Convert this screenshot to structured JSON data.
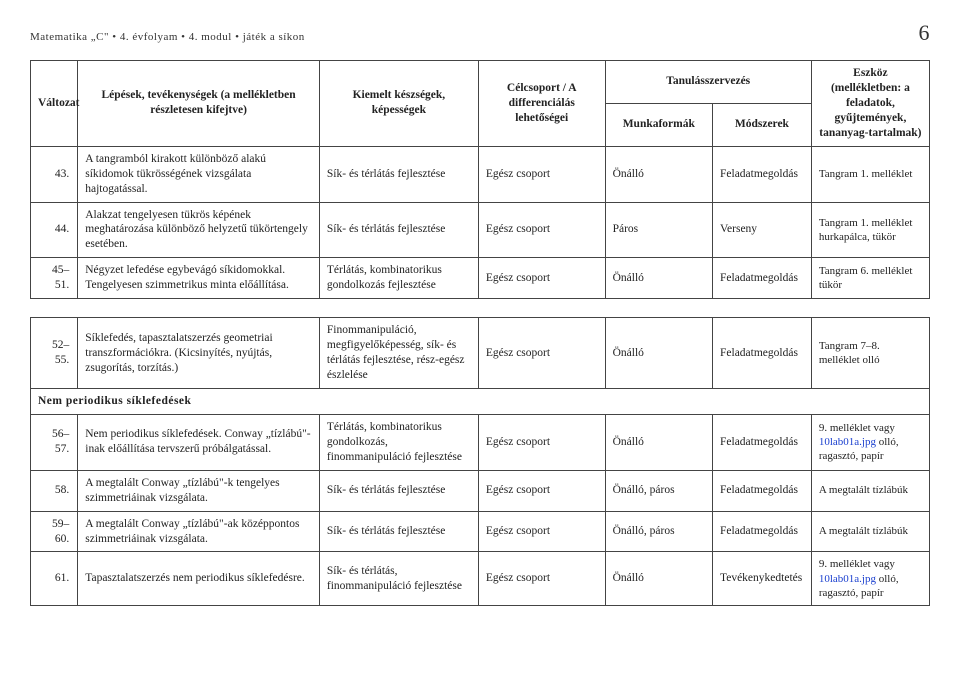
{
  "header": {
    "title_left": "Matematika „C\" • 4. évfolyam • 4. modul • játék a síkon",
    "page_number": "6"
  },
  "table_headers": {
    "variant": "Változat",
    "steps": "Lépések, tevékenységek\n(a mellékletben részletesen kifejtve)",
    "skills": "Kiemelt készségek, képességek",
    "target": "Célcsoport / A differenciálás lehetőségei",
    "org": "Tanulásszervezés",
    "forms": "Munkaformák",
    "methods": "Módszerek",
    "tool": "Eszköz (mellékletben: a feladatok, gyűjtemények, tananyag-tartalmak)"
  },
  "rows1": [
    {
      "num": "43.",
      "step": "A tangramból kirakott különböző alakú síkidomok tükrösségének vizsgálata hajtogatással.",
      "skill": "Sík- és térlátás fejlesztése",
      "target": "Egész csoport",
      "form": "Önálló",
      "method": "Feladatmegoldás",
      "tool": "Tangram 1. melléklet"
    },
    {
      "num": "44.",
      "step": "Alakzat tengelyesen tükrös képének meghatározása különböző helyzetű tükörtengely esetében.",
      "skill": "Sík- és térlátás fejlesztése",
      "target": "Egész csoport",
      "form": "Páros",
      "method": "Verseny",
      "tool": "Tangram 1. melléklet hurkapálca, tükör"
    },
    {
      "num": "45–51.",
      "step": "Négyzet lefedése egybevágó síkidomokkal. Tengelyesen szimmetrikus minta előállítása.",
      "skill": "Térlátás, kombinatorikus gondolkozás fejlesztése",
      "target": "Egész csoport",
      "form": "Önálló",
      "method": "Feladatmegoldás",
      "tool": "Tangram 6. melléklet tükör"
    }
  ],
  "rows2": [
    {
      "num": "52–55.",
      "step": "Síklefedés, tapasztalatszerzés geometriai transzformációkra. (Kicsinyítés, nyújtás, zsugorítás, torzítás.)",
      "skill": "Finommanipuláció, megfigyelőképesség, sík- és térlátás fejlesztése, rész-egész észlelése",
      "target": "Egész csoport",
      "form": "Önálló",
      "method": "Feladatmegoldás",
      "tool": "Tangram 7–8. melléklet olló"
    }
  ],
  "section_title": "Nem periodikus síklefedések",
  "rows3": [
    {
      "num": "56–57.",
      "step": "Nem periodikus síklefedések. Conway „tízlábú\"-inak előállítása tervszerű próbálgatással.",
      "skill": "Térlátás, kombinatorikus gondolkozás, finommanipuláció fejlesztése",
      "target": "Egész csoport",
      "form": "Önálló",
      "method": "Feladatmegoldás",
      "tool_pre": "9. melléklet vagy ",
      "tool_link": "10lab01a.jpg",
      "tool_post": " olló, ragasztó, papír"
    },
    {
      "num": "58.",
      "step": "A megtalált Conway „tízlábú\"-k tengelyes szimmetriáinak vizsgálata.",
      "skill": "Sík- és térlátás fejlesztése",
      "target": "Egész csoport",
      "form": "Önálló, páros",
      "method": "Feladatmegoldás",
      "tool": "A megtalált tízlábúk"
    },
    {
      "num": "59–60.",
      "step": "A megtalált Conway „tízlábú\"-ak középpontos szimmetriáinak vizsgálata.",
      "skill": "Sík- és térlátás fejlesztése",
      "target": "Egész csoport",
      "form": "Önálló, páros",
      "method": "Feladatmegoldás",
      "tool": "A megtalált tízlábúk"
    },
    {
      "num": "61.",
      "step": "Tapasztalatszerzés nem periodikus síklefedésre.",
      "skill": "Sík- és térlátás, finommanipuláció fejlesztése",
      "target": "Egész csoport",
      "form": "Önálló",
      "method": "Tevékenykedtetés",
      "tool_pre": "9. melléklet vagy ",
      "tool_link": "10lab01a.jpg",
      "tool_post": " olló, ragasztó, papír"
    }
  ]
}
